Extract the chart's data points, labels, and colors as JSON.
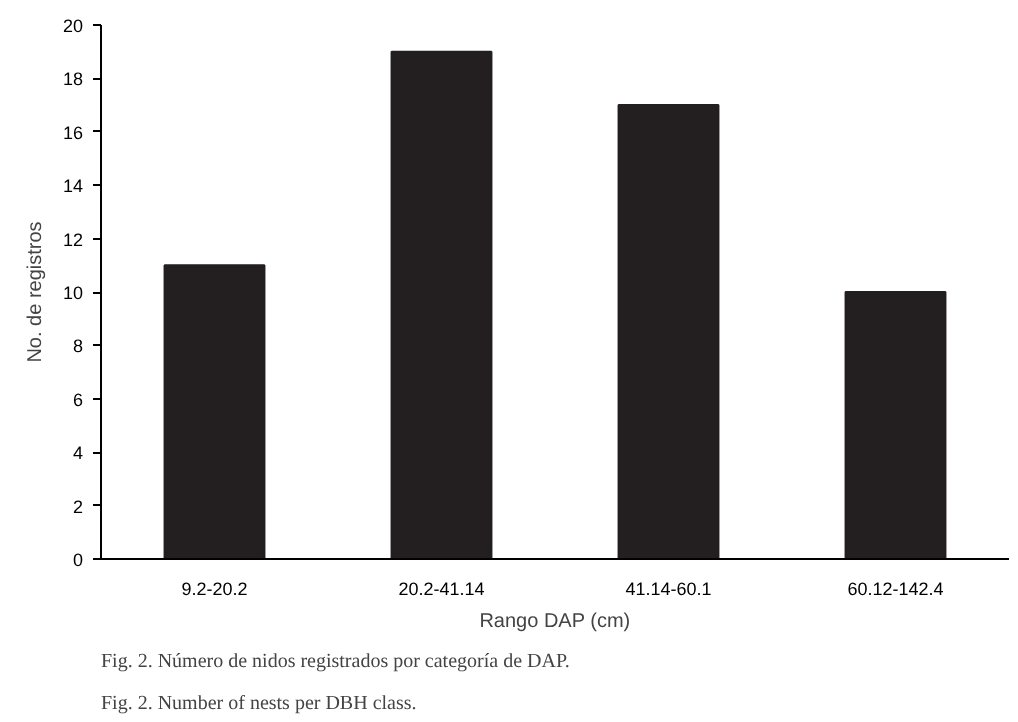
{
  "chart_data": {
    "type": "bar",
    "xlabel": "Rango DAP (cm)",
    "ylabel": "No. de registros",
    "categories": [
      "9.2-20.2",
      "20.2-41.14",
      "41.14-60.1",
      "60.12-142.4"
    ],
    "values": [
      11,
      19,
      17,
      10
    ],
    "color": "#231f20",
    "ylim": [
      0,
      20
    ],
    "yticks": [
      0,
      2,
      4,
      6,
      8,
      10,
      12,
      14,
      16,
      18,
      20
    ],
    "grid": false,
    "annotations": [
      "Fig. 2. Número de nidos registrados por categoría de DAP.",
      "Fig. 2. Number of nests per DBH class."
    ]
  }
}
